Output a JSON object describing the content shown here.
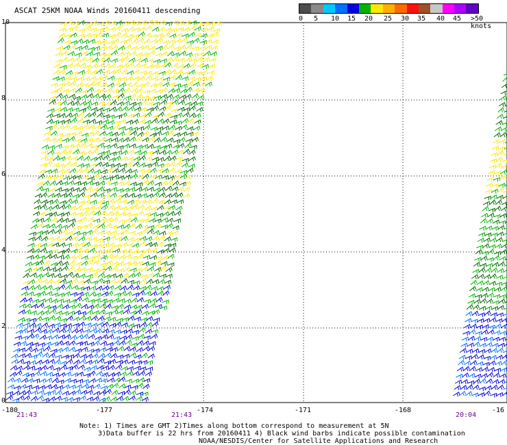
{
  "title": "ASCAT 25KM NOAA Winds 20160411 descending",
  "legend": {
    "colors": [
      "#4d4d4d",
      "#8a8a8a",
      "#00c8ff",
      "#0070ff",
      "#0000dd",
      "#00b400",
      "#ffe800",
      "#ffb000",
      "#ff6a00",
      "#ff1010",
      "#a05028",
      "#c8c8c8",
      "#ff00ff",
      "#b000ff",
      "#6000c0"
    ],
    "labels": [
      "0",
      "5",
      "10",
      "15",
      "20",
      "25",
      "30",
      "35",
      "40",
      "45",
      ">50 knots"
    ]
  },
  "axes": {
    "y_ticks": [
      "10",
      "8",
      "6",
      "4",
      "2",
      "0"
    ],
    "x_ticks": [
      "-180",
      "-177",
      "-174",
      "-171",
      "-168",
      "-16"
    ]
  },
  "times": [
    "21:43",
    "21:43",
    "20:04"
  ],
  "notes": [
    "Note: 1) Times are GMT 2)Times along bottom correspond to measurement at 5N",
    "3)Data buffer is 22 hrs from 20160411 4) Black wind barbs indicate possible contamination",
    "NOAA/NESDIS/Center for Satellite Applications and Research"
  ],
  "barb_colors": {
    "yellow": "#ffe800",
    "green": "#00b400",
    "dark_green": "#006400",
    "blue": "#0000dd",
    "light_blue": "#0070ff"
  }
}
